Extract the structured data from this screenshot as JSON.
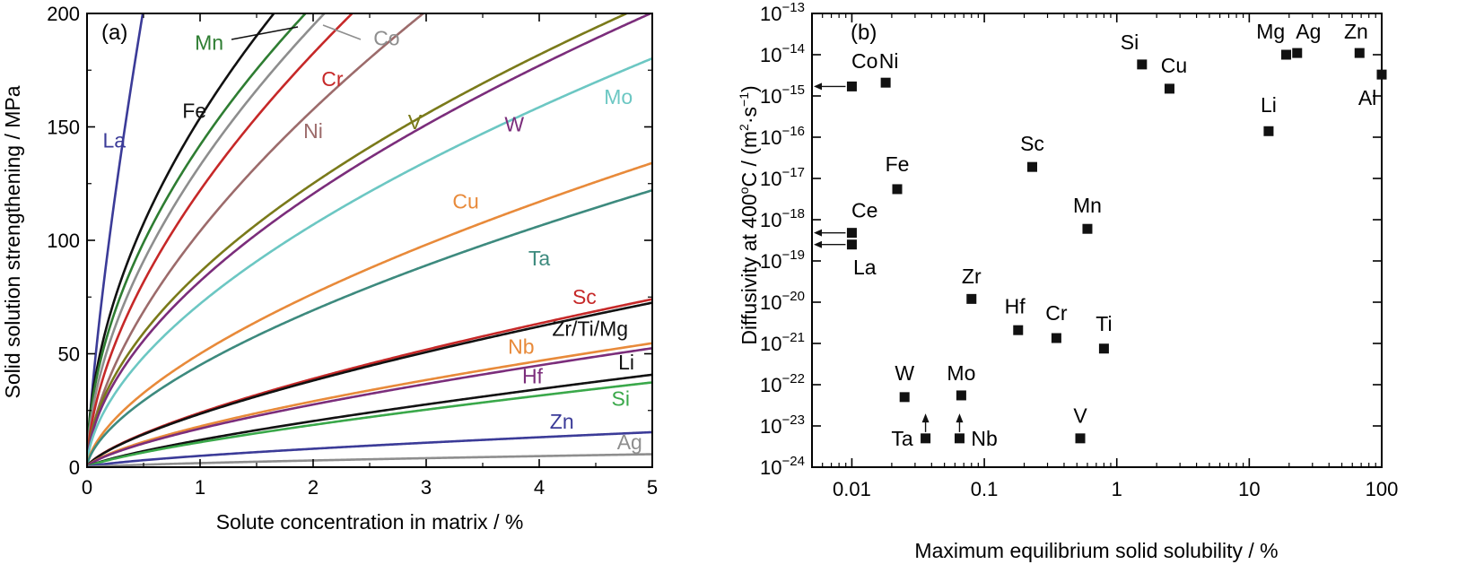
{
  "chart_data": [
    {
      "panel": "(a)",
      "type": "line",
      "xlabel": "Solute concentration in matrix / %",
      "ylabel": "Solid solution strengthening / MPa",
      "xlim": [
        0,
        5
      ],
      "ylim": [
        0,
        200
      ],
      "xticks": [
        0,
        1,
        2,
        3,
        4,
        5
      ],
      "yticks": [
        0,
        50,
        100,
        150,
        200
      ],
      "grid": false,
      "series": [
        {
          "name": "La",
          "color": "#3b3b98",
          "k": 340,
          "n": 0.75
        },
        {
          "name": "Fe",
          "color": "#111111",
          "k": 154,
          "n": 0.52
        },
        {
          "name": "Mn",
          "color": "#2e7d32",
          "k": 142,
          "n": 0.52
        },
        {
          "name": "Co",
          "color": "#8e8e8e",
          "k": 133,
          "n": 0.55
        },
        {
          "name": "Cr",
          "color": "#c62828",
          "k": 122,
          "n": 0.58
        },
        {
          "name": "Ni",
          "color": "#9c6b6b",
          "k": 104,
          "n": 0.6
        },
        {
          "name": "V",
          "color": "#7a7a1a",
          "k": 86,
          "n": 0.54
        },
        {
          "name": "W",
          "color": "#7b2d7b",
          "k": 82,
          "n": 0.555
        },
        {
          "name": "Mo",
          "color": "#6cc7c3",
          "k": 72,
          "n": 0.57
        },
        {
          "name": "Cu",
          "color": "#e88a3a",
          "k": 50,
          "n": 0.613
        },
        {
          "name": "Ta",
          "color": "#3d8a7e",
          "k": 45,
          "n": 0.62
        },
        {
          "name": "Sc",
          "color": "#c62828",
          "k": 24,
          "n": 0.7
        },
        {
          "name": "Zr/Ti/Mg",
          "color": "#111111",
          "k": 23.5,
          "n": 0.7
        },
        {
          "name": "Nb",
          "color": "#e88a3a",
          "k": 18,
          "n": 0.69
        },
        {
          "name": "Hf",
          "color": "#7b2d7b",
          "k": 17,
          "n": 0.7
        },
        {
          "name": "Li",
          "color": "#111111",
          "k": 12,
          "n": 0.76
        },
        {
          "name": "Si",
          "color": "#3aa84a",
          "k": 11,
          "n": 0.76
        },
        {
          "name": "Zn",
          "color": "#3b3b98",
          "k": 5,
          "n": 0.7
        },
        {
          "name": "Ag",
          "color": "#8e8e8e",
          "k": 1.8,
          "n": 0.72
        }
      ],
      "labels": [
        {
          "text": "La",
          "x": 0.24,
          "y": 141,
          "color": "#3b3b98"
        },
        {
          "text": "Fe",
          "x": 0.95,
          "y": 154,
          "color": "#111111"
        },
        {
          "text": "Mn",
          "x": 1.08,
          "y": 184,
          "color": "#2e7d32"
        },
        {
          "text": "Co",
          "x": 2.65,
          "y": 186,
          "color": "#8e8e8e"
        },
        {
          "text": "Cr",
          "x": 2.17,
          "y": 168,
          "color": "#c62828"
        },
        {
          "text": "Ni",
          "x": 2.0,
          "y": 145,
          "color": "#9c6b6b"
        },
        {
          "text": "V",
          "x": 2.9,
          "y": 149,
          "color": "#7a7a1a"
        },
        {
          "text": "W",
          "x": 3.78,
          "y": 148,
          "color": "#7b2d7b"
        },
        {
          "text": "Mo",
          "x": 4.7,
          "y": 160,
          "color": "#6cc7c3"
        },
        {
          "text": "Cu",
          "x": 3.35,
          "y": 114,
          "color": "#e88a3a"
        },
        {
          "text": "Ta",
          "x": 4.0,
          "y": 89,
          "color": "#3d8a7e"
        },
        {
          "text": "Sc",
          "x": 4.4,
          "y": 72,
          "color": "#c62828"
        },
        {
          "text": "Zr/Ti/Mg",
          "x": 4.45,
          "y": 58,
          "color": "#111111"
        },
        {
          "text": "Nb",
          "x": 3.84,
          "y": 50,
          "color": "#e88a3a"
        },
        {
          "text": "Hf",
          "x": 3.94,
          "y": 37,
          "color": "#7b2d7b"
        },
        {
          "text": "Li",
          "x": 4.77,
          "y": 43,
          "color": "#111111"
        },
        {
          "text": "Si",
          "x": 4.72,
          "y": 27,
          "color": "#3aa84a"
        },
        {
          "text": "Zn",
          "x": 4.2,
          "y": 17,
          "color": "#3b3b98"
        },
        {
          "text": "Ag",
          "x": 4.8,
          "y": 8,
          "color": "#8e8e8e"
        }
      ]
    },
    {
      "panel": "(b)",
      "type": "scatter",
      "xlabel": "Maximum equilibrium solid solubility / %",
      "ylabel_main": "Diffusivity at 400",
      "ylabel_deg": "o",
      "ylabel_rest": "C / (m",
      "ylabel_sup1": "2",
      "ylabel_dot": "·s",
      "ylabel_sup2": "−1",
      "ylabel_end": ")",
      "x_scale": "log",
      "y_scale": "log",
      "xlim": [
        0.005,
        100
      ],
      "ylim": [
        1e-24,
        1e-13
      ],
      "xticks": [
        {
          "value": 0.01,
          "label": "0.01"
        },
        {
          "value": 0.1,
          "label": "0.1"
        },
        {
          "value": 1,
          "label": "1"
        },
        {
          "value": 10,
          "label": "10"
        },
        {
          "value": 100,
          "label": "100"
        }
      ],
      "yticks": [
        {
          "exp": -13,
          "base": "10",
          "sup": "−13"
        },
        {
          "exp": -14,
          "base": "10",
          "sup": "−14"
        },
        {
          "exp": -15,
          "base": "10",
          "sup": "−15"
        },
        {
          "exp": -16,
          "base": "10",
          "sup": "−16"
        },
        {
          "exp": -17,
          "base": "10",
          "sup": "−17"
        },
        {
          "exp": -18,
          "base": "10",
          "sup": "−18"
        },
        {
          "exp": -19,
          "base": "10",
          "sup": "−19"
        },
        {
          "exp": -20,
          "base": "10",
          "sup": "−20"
        },
        {
          "exp": -21,
          "base": "10",
          "sup": "−21"
        },
        {
          "exp": -22,
          "base": "10",
          "sup": "−22"
        },
        {
          "exp": -23,
          "base": "10",
          "sup": "−23"
        },
        {
          "exp": -24,
          "base": "10",
          "sup": "−24"
        }
      ],
      "grid": false,
      "marker_color": "#111111",
      "points": [
        {
          "name": "Co",
          "x": 0.01,
          "y": 1.7e-15,
          "arrow": "left",
          "lx": 0.0125,
          "ly": 7e-15
        },
        {
          "name": "Ni",
          "x": 0.018,
          "y": 2.1e-15,
          "lx": 0.019,
          "ly": 7e-15
        },
        {
          "name": "Si",
          "x": 1.55,
          "y": 5.8e-15,
          "lx": 1.25,
          "ly": 2e-14
        },
        {
          "name": "Cu",
          "x": 2.5,
          "y": 1.5e-15,
          "lx": 2.7,
          "ly": 5.5e-15
        },
        {
          "name": "Mg",
          "x": 19,
          "y": 1e-14,
          "lx": 14.5,
          "ly": 3.7e-14
        },
        {
          "name": "Ag",
          "x": 23,
          "y": 1.1e-14,
          "lx": 28,
          "ly": 3.7e-14
        },
        {
          "name": "Zn",
          "x": 68,
          "y": 1.1e-14,
          "lx": 64,
          "ly": 3.7e-14
        },
        {
          "name": "Al",
          "x": 100,
          "y": 3.3e-15,
          "lx": 78,
          "ly": 9e-16
        },
        {
          "name": "Li",
          "x": 14,
          "y": 1.4e-16,
          "lx": 14,
          "ly": 6e-16
        },
        {
          "name": "Sc",
          "x": 0.23,
          "y": 1.9e-17,
          "lx": 0.23,
          "ly": 7e-17
        },
        {
          "name": "Fe",
          "x": 0.022,
          "y": 5.5e-18,
          "lx": 0.022,
          "ly": 2.2e-17
        },
        {
          "name": "Mn",
          "x": 0.6,
          "y": 6e-19,
          "lx": 0.6,
          "ly": 2.2e-18
        },
        {
          "name": "Ce",
          "x": 0.01,
          "y": 4.8e-19,
          "arrow": "left",
          "lx": 0.0125,
          "ly": 1.7e-18
        },
        {
          "name": "La",
          "x": 0.01,
          "y": 2.5e-19,
          "arrow": "left",
          "lx": 0.0125,
          "ly": 7e-20
        },
        {
          "name": "Zr",
          "x": 0.08,
          "y": 1.2e-20,
          "lx": 0.08,
          "ly": 4.3e-20
        },
        {
          "name": "Hf",
          "x": 0.18,
          "y": 2.1e-21,
          "lx": 0.17,
          "ly": 8e-21
        },
        {
          "name": "Cr",
          "x": 0.35,
          "y": 1.35e-21,
          "lx": 0.35,
          "ly": 5.5e-21
        },
        {
          "name": "Ti",
          "x": 0.8,
          "y": 7.5e-22,
          "lx": 0.8,
          "ly": 3e-21
        },
        {
          "name": "W",
          "x": 0.025,
          "y": 5e-23,
          "lx": 0.025,
          "ly": 1.9e-22
        },
        {
          "name": "Mo",
          "x": 0.067,
          "y": 5.5e-23,
          "lx": 0.067,
          "ly": 1.9e-22
        },
        {
          "name": "V",
          "x": 0.53,
          "y": 5e-24,
          "lx": 0.53,
          "ly": 1.8e-23
        },
        {
          "name": "Ta",
          "x": 0.036,
          "y": 5e-24,
          "arrow": "up",
          "lx": 0.024,
          "ly": 5e-24
        },
        {
          "name": "Nb",
          "x": 0.065,
          "y": 5e-24,
          "arrow": "up",
          "lx": 0.1,
          "ly": 5e-24
        }
      ]
    }
  ]
}
